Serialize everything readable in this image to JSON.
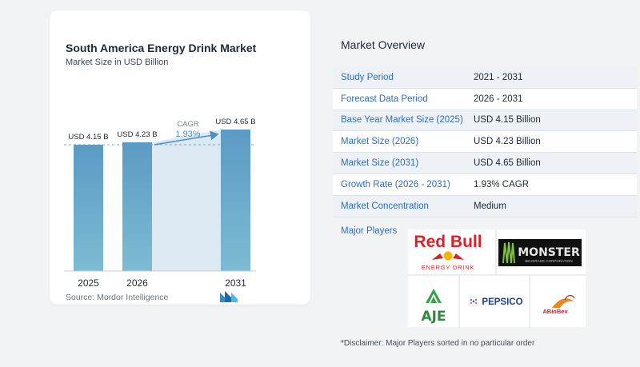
{
  "chart_data": {
    "type": "bar",
    "title": "South America Energy Drink Market",
    "subtitle": "Market Size in USD Billion",
    "categories": [
      "2025",
      "2026",
      "2031"
    ],
    "values": [
      4.15,
      4.23,
      4.65
    ],
    "data_labels": [
      "USD 4.15 B",
      "USD 4.23 B",
      "USD 4.65 B"
    ],
    "cagr_label": "CAGR",
    "cagr_value": "1.93%",
    "bar_color": "#5e9ec4",
    "ylim": [
      0,
      4.65
    ]
  },
  "source": "Source: Mordor Intelligence",
  "overview": {
    "title": "Market Overview",
    "rows": [
      {
        "label": "Study Period",
        "value": "2021 - 2031"
      },
      {
        "label": "Forecast Data Period",
        "value": "2026 - 2031"
      },
      {
        "label": "Base Year Market Size (2025)",
        "value": "USD 4.15 Billion"
      },
      {
        "label": "Market Size (2026)",
        "value": "USD 4.23 Billion"
      },
      {
        "label": "Market Size (2031)",
        "value": "USD 4.65 Billion"
      },
      {
        "label": "Growth Rate (2026 - 2031)",
        "value": "1.93% CAGR"
      },
      {
        "label": "Market Concentration",
        "value": "Medium"
      }
    ],
    "players_label": "Major Players",
    "players": [
      {
        "name": "Red Bull",
        "tagline": "ENERGY DRINK"
      },
      {
        "name": "MONSTER",
        "tagline": "BEVERAGE CORPORATION"
      },
      {
        "name": "AJE"
      },
      {
        "name": "PEPSICO"
      },
      {
        "name": "ABInBev"
      }
    ]
  },
  "disclaimer": "*Disclaimer: Major Players sorted in no particular order"
}
